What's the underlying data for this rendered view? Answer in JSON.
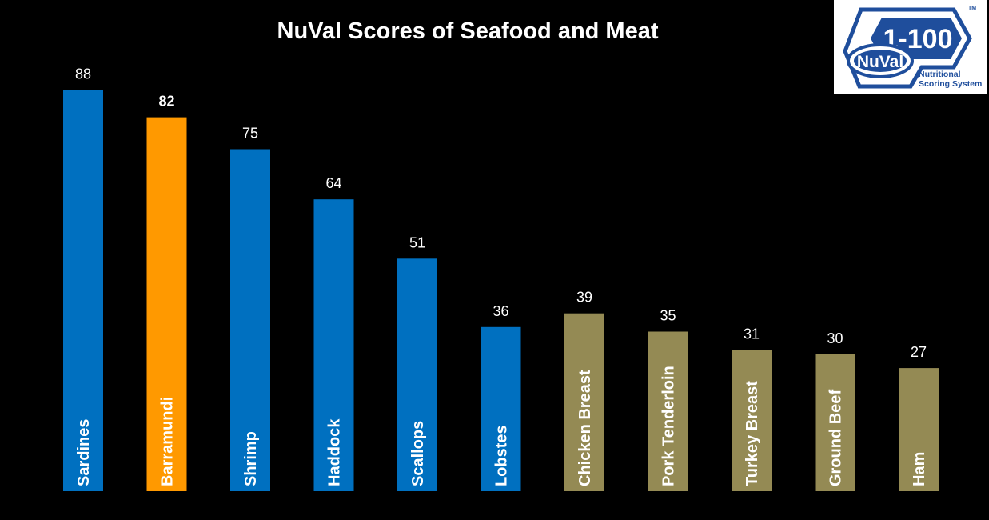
{
  "colors": {
    "background": "#000000",
    "seafood": "#0070c0",
    "highlight": "#ff9900",
    "meat": "#948a54",
    "text": "#ffffff",
    "logo_blue": "#1f4e9c"
  },
  "logo": {
    "badge": "1-100",
    "brand": "NuVal",
    "tm": "TM",
    "line1": "Nutritional",
    "line2": "Scoring System"
  },
  "chart_data": {
    "type": "bar",
    "title": "NuVal Scores of Seafood and Meat",
    "xlabel": "",
    "ylabel": "",
    "ylim": [
      0,
      100
    ],
    "grid": false,
    "legend": "none",
    "categories": [
      "Sardines",
      "Barramundi",
      "Shrimp",
      "Haddock",
      "Scallops",
      "Lobstes",
      "Chicken Breast",
      "Pork Tenderloin",
      "Turkey Breast",
      "Ground Beef",
      "Ham"
    ],
    "values": [
      88,
      82,
      75,
      64,
      51,
      36,
      39,
      35,
      31,
      30,
      27
    ],
    "value_labels": [
      "88",
      "82",
      "75",
      "64",
      "51",
      "36",
      "39",
      "35",
      "31",
      "30",
      "27"
    ],
    "bar_colors": [
      "#0070c0",
      "#ff9900",
      "#0070c0",
      "#0070c0",
      "#0070c0",
      "#0070c0",
      "#948a54",
      "#948a54",
      "#948a54",
      "#948a54",
      "#948a54"
    ],
    "highlighted_index": 1
  }
}
